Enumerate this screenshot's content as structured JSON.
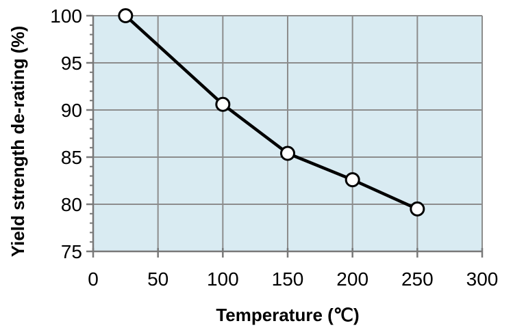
{
  "chart_data": {
    "type": "line",
    "title": "",
    "xlabel": "Temperature (℃)",
    "ylabel": "Yield strength de-rating (%)",
    "x": [
      25,
      100,
      150,
      200,
      250
    ],
    "y": [
      100,
      90.6,
      85.4,
      82.6,
      79.5
    ],
    "series": [
      {
        "name": "yield-strength-derating",
        "x": [
          25,
          100,
          150,
          200,
          250
        ],
        "values": [
          100,
          90.6,
          85.4,
          82.6,
          79.5
        ]
      }
    ],
    "xlim": [
      0,
      300
    ],
    "ylim": [
      75,
      100
    ],
    "xticks": [
      0,
      50,
      100,
      150,
      200,
      250,
      300
    ],
    "yticks": [
      75,
      80,
      85,
      90,
      95,
      100
    ],
    "y_minor_step": 1,
    "grid": true,
    "legend_position": "none",
    "colors": {
      "plot_background": "#d9ebf2",
      "gridline": "#8c8c8c",
      "axis": "#787878",
      "line": "#000000",
      "marker_fill": "#ffffff",
      "marker_edge": "#000000",
      "text": "#000000"
    }
  }
}
